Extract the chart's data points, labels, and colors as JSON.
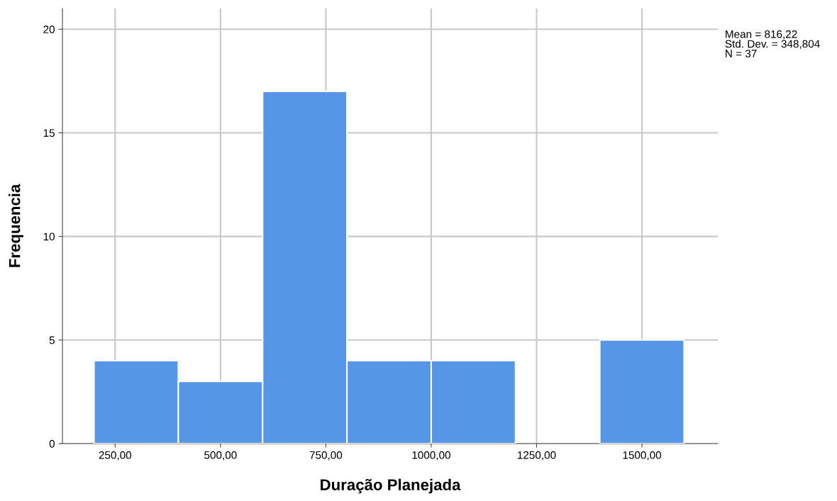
{
  "chart_data": {
    "type": "histogram",
    "xlabel": "Duração Planejada",
    "ylabel": "Frequencia",
    "bins": [
      200,
      400,
      600,
      800,
      1000,
      1200,
      1400,
      1600
    ],
    "values": [
      4,
      3,
      17,
      4,
      4,
      0,
      5
    ],
    "color": "#5596e6",
    "xlim": [
      125,
      1680
    ],
    "xticks": [
      {
        "value": 250,
        "label": "250,00"
      },
      {
        "value": 500,
        "label": "500,00"
      },
      {
        "value": 750,
        "label": "750,00"
      },
      {
        "value": 1000,
        "label": "1000,00"
      },
      {
        "value": 1250,
        "label": "1250,00"
      },
      {
        "value": 1500,
        "label": "1500,00"
      }
    ],
    "ylim": [
      0,
      21
    ],
    "yticks": [
      0,
      5,
      10,
      15,
      20
    ],
    "grid": true,
    "annotations": [
      "Mean = 816,22\nStd. Dev. = 348,804\nN = 37"
    ]
  }
}
